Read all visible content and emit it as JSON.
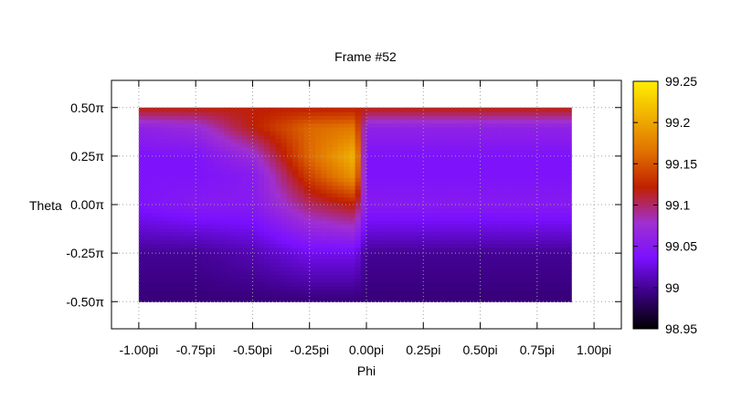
{
  "chart_data": {
    "type": "heatmap",
    "title": "Frame #52",
    "xlabel": "Phi",
    "ylabel": "Theta",
    "xlim": [
      -1.12,
      1.12
    ],
    "ylim": [
      -0.64,
      0.64
    ],
    "x_ticks": [
      {
        "value": -1.0,
        "label": "-1.00pi"
      },
      {
        "value": -0.75,
        "label": "-0.75pi"
      },
      {
        "value": -0.5,
        "label": "-0.50pi"
      },
      {
        "value": -0.25,
        "label": "-0.25pi"
      },
      {
        "value": 0.0,
        "label": "0.00pi"
      },
      {
        "value": 0.25,
        "label": "0.25pi"
      },
      {
        "value": 0.5,
        "label": "0.50pi"
      },
      {
        "value": 0.75,
        "label": "0.75pi"
      },
      {
        "value": 1.0,
        "label": "1.00pi"
      }
    ],
    "y_ticks": [
      {
        "value": 0.5,
        "label": "0.50π"
      },
      {
        "value": 0.25,
        "label": "0.25π"
      },
      {
        "value": 0.0,
        "label": "0.00π"
      },
      {
        "value": -0.25,
        "label": "-0.25π"
      },
      {
        "value": -0.5,
        "label": "-0.50π"
      }
    ],
    "grid": true,
    "data_extent": {
      "x": [
        -1.0,
        0.9
      ],
      "y": [
        -0.5,
        0.5
      ]
    },
    "colorbar": {
      "range": [
        98.95,
        99.25
      ],
      "ticks": [
        {
          "value": 99.25,
          "label": "99.25"
        },
        {
          "value": 99.2,
          "label": "99.2"
        },
        {
          "value": 99.15,
          "label": "99.15"
        },
        {
          "value": 99.1,
          "label": "99.1"
        },
        {
          "value": 99.05,
          "label": "99.05"
        },
        {
          "value": 99.0,
          "label": "99"
        },
        {
          "value": 98.95,
          "label": "98.95"
        }
      ],
      "palette": [
        "#000000",
        "#3a0080",
        "#7a10ff",
        "#a030d0",
        "#c02000",
        "#e07000",
        "#f0b000",
        "#ffee00"
      ]
    },
    "x": [
      -1.0,
      -0.75,
      -0.5,
      -0.25,
      -0.05,
      0.0,
      0.25,
      0.5,
      0.75,
      0.9
    ],
    "y": [
      -0.5,
      -0.25,
      0.0,
      0.15,
      0.25,
      0.4,
      0.5
    ],
    "z": [
      [
        98.99,
        98.99,
        98.99,
        98.99,
        98.99,
        98.99,
        98.99,
        98.99,
        98.99,
        98.99
      ],
      [
        99.0,
        99.0,
        99.01,
        99.03,
        99.03,
        99.0,
        99.0,
        99.0,
        99.0,
        99.0
      ],
      [
        99.04,
        99.05,
        99.05,
        99.1,
        99.12,
        99.05,
        99.05,
        99.05,
        99.05,
        99.05
      ],
      [
        99.04,
        99.04,
        99.05,
        99.14,
        99.19,
        99.04,
        99.04,
        99.04,
        99.04,
        99.04
      ],
      [
        99.04,
        99.04,
        99.07,
        99.16,
        99.21,
        99.04,
        99.04,
        99.04,
        99.04,
        99.04
      ],
      [
        99.06,
        99.07,
        99.12,
        99.16,
        99.17,
        99.06,
        99.06,
        99.06,
        99.06,
        99.06
      ],
      [
        99.12,
        99.12,
        99.12,
        99.12,
        99.12,
        99.12,
        99.12,
        99.12,
        99.12,
        99.12
      ]
    ]
  }
}
